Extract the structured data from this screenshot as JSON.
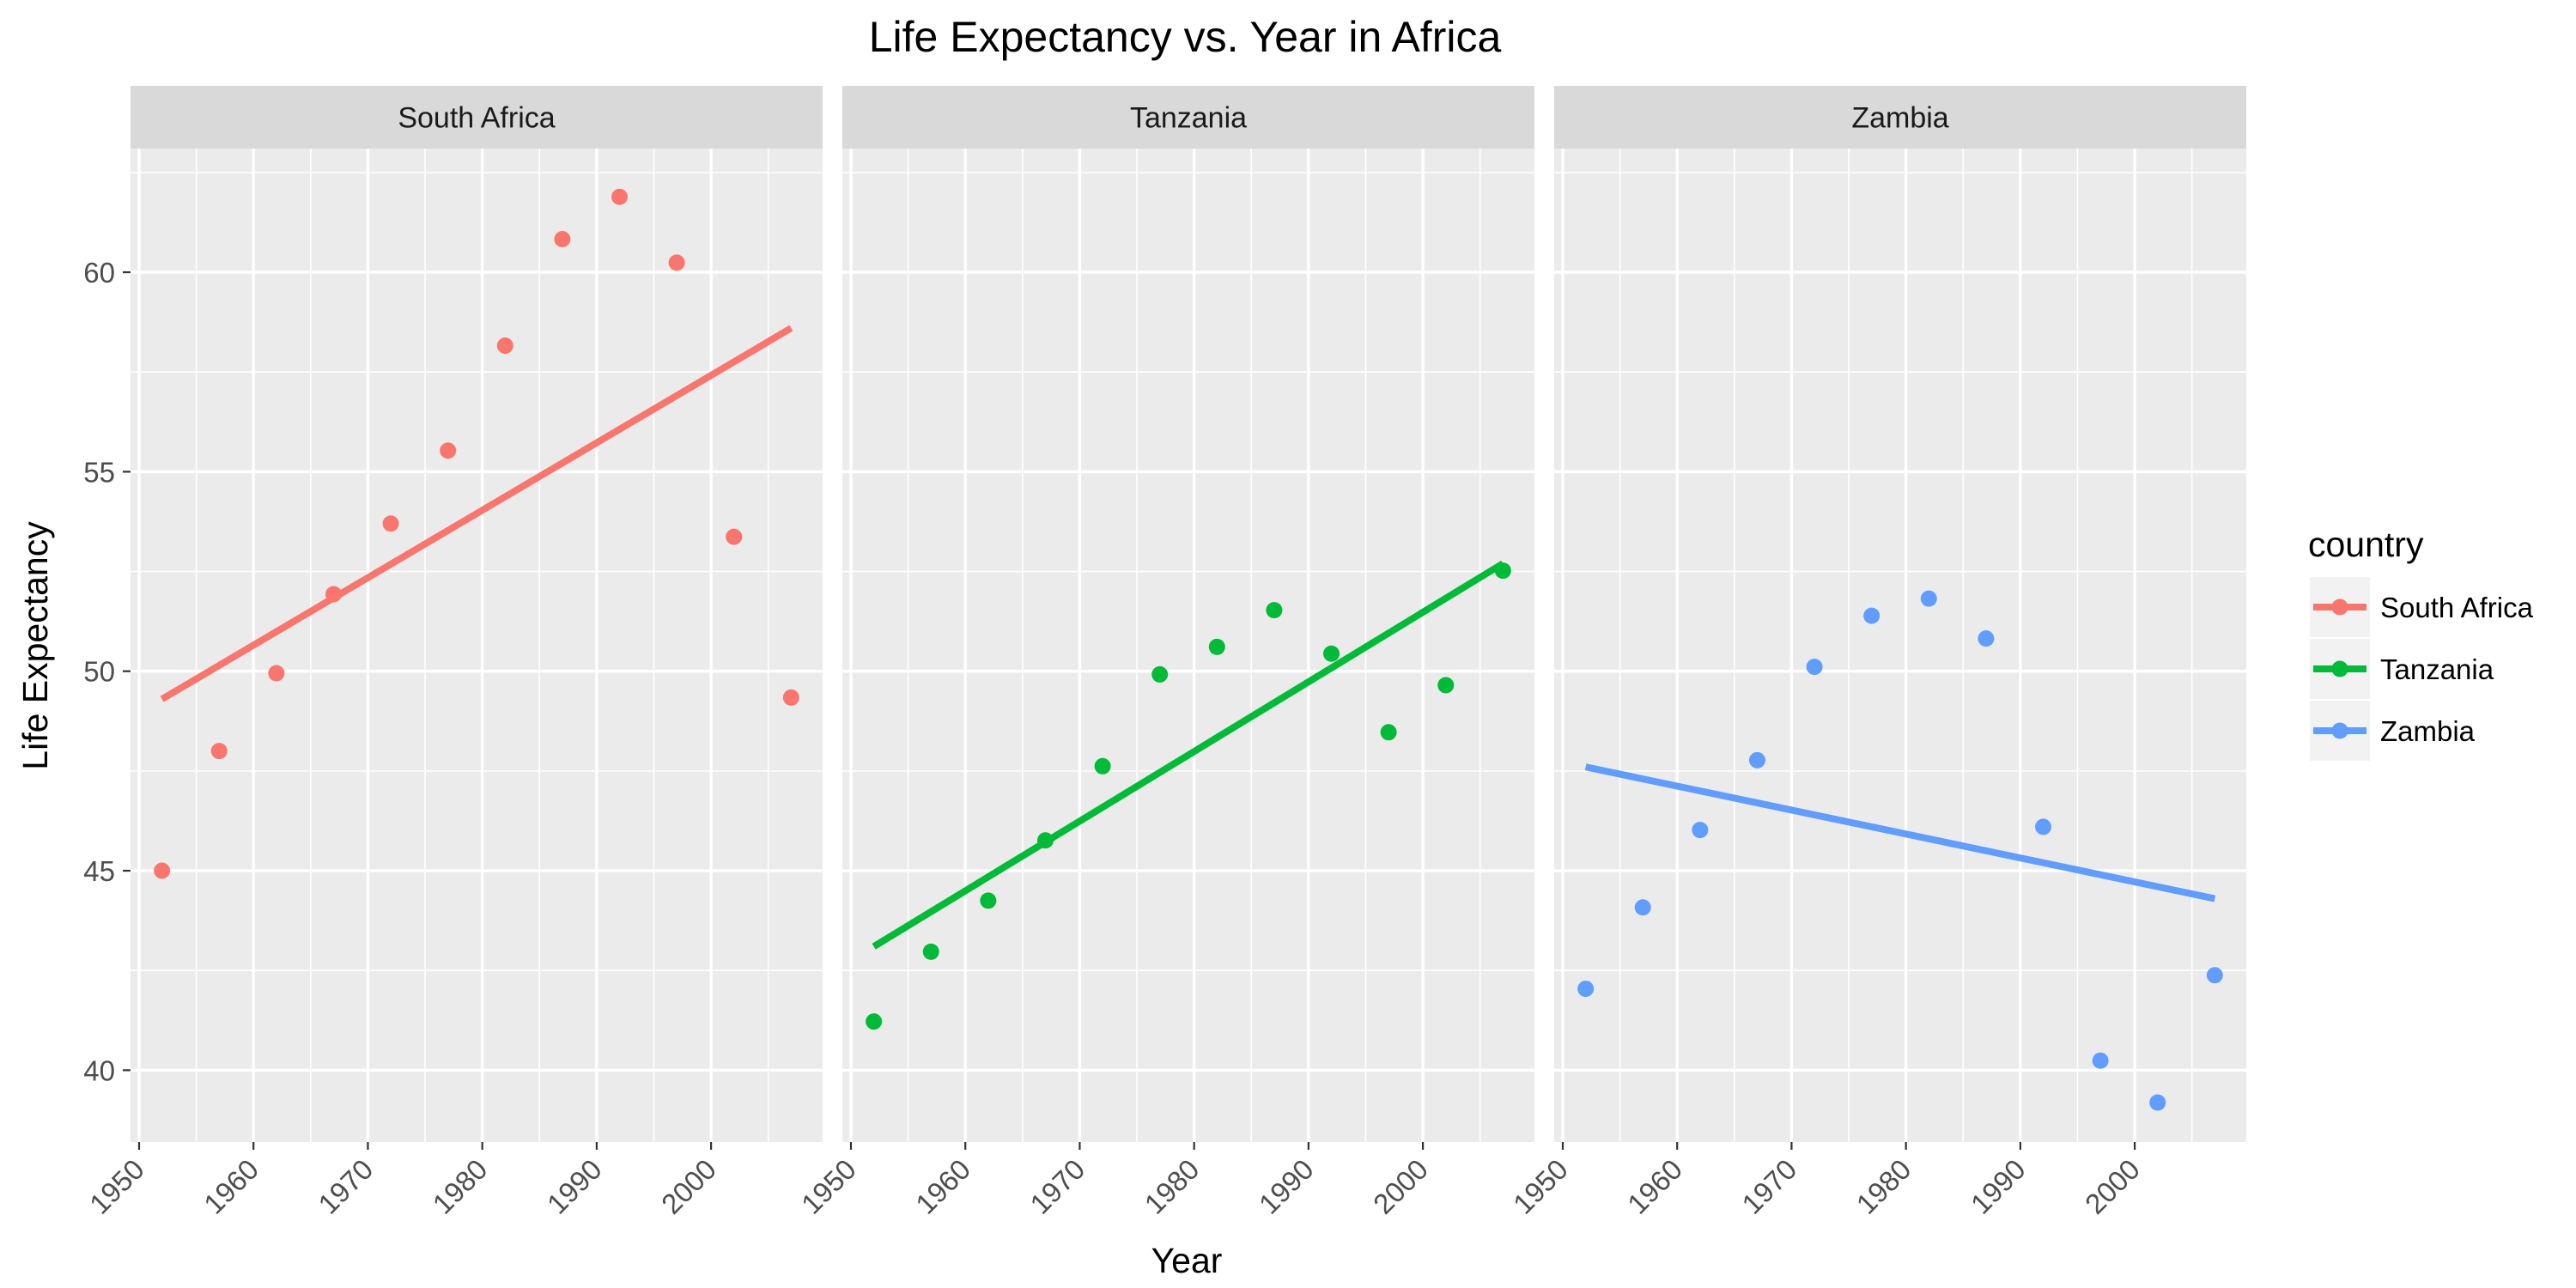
{
  "chart_data": {
    "type": "scatter",
    "title": "Life Expectancy vs. Year in Africa",
    "xlabel": "Year",
    "ylabel": "Life Expectancy",
    "xlim": [
      1949.25,
      2009.75
    ],
    "ylim": [
      38.2,
      63.1
    ],
    "x_ticks": [
      1950,
      1960,
      1970,
      1980,
      1990,
      2000
    ],
    "y_ticks": [
      40,
      45,
      50,
      55,
      60
    ],
    "grid": true,
    "legend": {
      "title": "country",
      "position": "right"
    },
    "facets": [
      {
        "name": "South Africa",
        "color": "#F8766D",
        "x": [
          1952,
          1957,
          1962,
          1967,
          1972,
          1977,
          1982,
          1987,
          1992,
          1997,
          2002,
          2007
        ],
        "y": [
          45.0,
          48.0,
          49.95,
          51.93,
          53.7,
          55.53,
          58.16,
          60.83,
          61.89,
          60.24,
          53.37,
          49.34
        ],
        "trend": {
          "x": [
            1952,
            2007
          ],
          "y": [
            49.3,
            58.6
          ]
        }
      },
      {
        "name": "Tanzania",
        "color": "#00BA38",
        "x": [
          1952,
          1957,
          1962,
          1967,
          1972,
          1977,
          1982,
          1987,
          1992,
          1997,
          2002,
          2007
        ],
        "y": [
          41.22,
          42.97,
          44.25,
          45.76,
          47.62,
          49.92,
          50.61,
          51.53,
          50.44,
          48.47,
          49.65,
          52.52
        ],
        "trend": {
          "x": [
            1952,
            2007
          ],
          "y": [
            43.1,
            52.7
          ]
        }
      },
      {
        "name": "Zambia",
        "color": "#619CFF",
        "x": [
          1952,
          1957,
          1962,
          1967,
          1972,
          1977,
          1982,
          1987,
          1992,
          1997,
          2002,
          2007
        ],
        "y": [
          42.04,
          44.08,
          46.02,
          47.77,
          50.11,
          51.39,
          51.82,
          50.82,
          46.1,
          40.24,
          39.19,
          42.38
        ],
        "trend": {
          "x": [
            1952,
            2007
          ],
          "y": [
            47.6,
            44.3
          ]
        }
      }
    ]
  }
}
